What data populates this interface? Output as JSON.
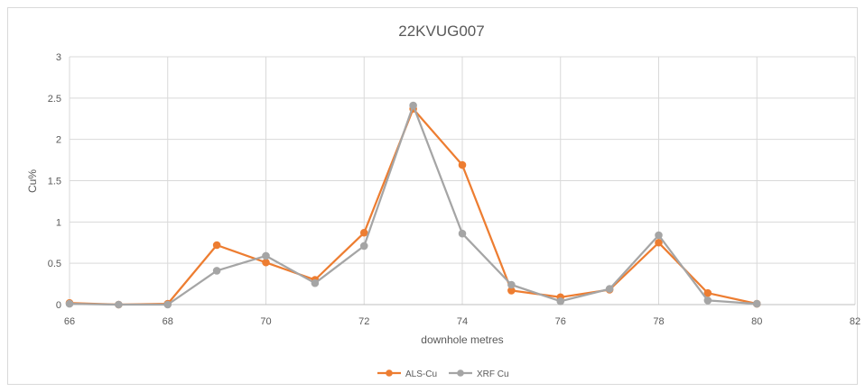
{
  "chart_data": {
    "type": "scatter",
    "title": "22KVUG007",
    "xlabel": "downhole metres",
    "ylabel": "Cu%",
    "xlim": [
      66,
      82
    ],
    "ylim": [
      0,
      3
    ],
    "xticks": [
      66,
      68,
      70,
      72,
      74,
      76,
      78,
      80,
      82
    ],
    "yticks": [
      0,
      0.5,
      1,
      1.5,
      2,
      2.5,
      3
    ],
    "xtick_labels": [
      "66",
      "68",
      "70",
      "72",
      "74",
      "76",
      "78",
      "80",
      "82"
    ],
    "ytick_labels": [
      "0",
      "0.5",
      "1",
      "1.5",
      "2",
      "2.5",
      "3"
    ],
    "grid": true,
    "legend_position": "bottom",
    "series": [
      {
        "name": "ALS-Cu",
        "color": "#ed7d31",
        "x": [
          66,
          67,
          68,
          69,
          70,
          71,
          72,
          73,
          74,
          75,
          76,
          77,
          78,
          79,
          80
        ],
        "y": [
          0.02,
          0.0,
          0.01,
          0.72,
          0.51,
          0.3,
          0.87,
          2.37,
          1.69,
          0.17,
          0.09,
          0.18,
          0.75,
          0.14,
          0.01
        ]
      },
      {
        "name": "XRF Cu",
        "color": "#a5a5a5",
        "x": [
          66,
          67,
          68,
          69,
          70,
          71,
          72,
          73,
          74,
          75,
          76,
          77,
          78,
          79,
          80
        ],
        "y": [
          0.01,
          0.0,
          0.0,
          0.41,
          0.59,
          0.26,
          0.71,
          2.41,
          0.86,
          0.24,
          0.04,
          0.19,
          0.84,
          0.05,
          0.01
        ]
      }
    ]
  }
}
